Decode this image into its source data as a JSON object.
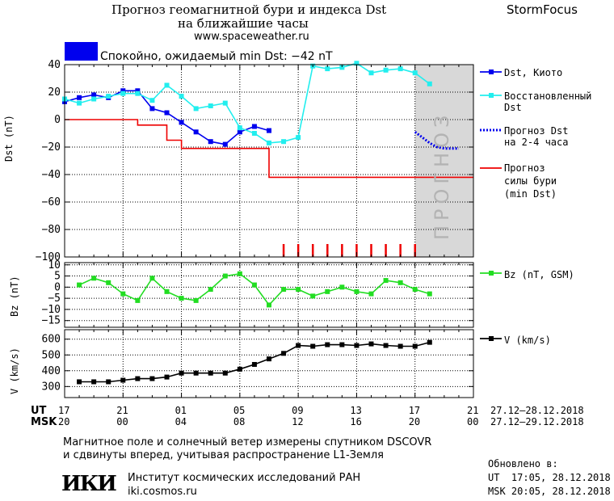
{
  "header": {
    "title_line1": "Прогноз геомагнитной бури и индекса Dst",
    "title_line2": "на ближайшие часы",
    "url": "www.spaceweather.ru",
    "brand": "StormFocus"
  },
  "status": {
    "color": "#0000ee",
    "text": "Спокойно, ожидаемый min Dst: −42 nT"
  },
  "forecast_label": "ПРОГНОЗ",
  "legend": {
    "dst_kyoto": "Dst, Киото",
    "restored_1": "Восстановленный",
    "restored_2": "Dst",
    "forecast_1": "Прогноз Dst",
    "forecast_2": "на 2-4 часа",
    "storm_1": "Прогноз",
    "storm_2": "силы бури",
    "storm_3": "(min Dst)",
    "bz": "Bz (nT, GSM)",
    "v": "V (km/s)"
  },
  "time_axis": {
    "ut_label": "UT",
    "msk_label": "MSK",
    "ut_ticks": [
      "17",
      "21",
      "01",
      "05",
      "09",
      "13",
      "17",
      "21"
    ],
    "msk_ticks": [
      "20",
      "00",
      "04",
      "08",
      "12",
      "16",
      "20",
      "00"
    ],
    "ut_range": "27.12–28.12.2018",
    "msk_range": "27.12–29.12.2018"
  },
  "footer": {
    "line1": "Магнитное поле и солнечный ветер измерены спутником DSCOVR",
    "line2": "и сдвинуты вперед, учитывая распространение L1-Земля",
    "logo": "ИКИ",
    "institute": "Институт космических исследований РАН",
    "institute_url": "iki.cosmos.ru",
    "updated_label": "Обновлено в:",
    "updated_ut": "UT  17:05, 28.12.2018",
    "updated_msk": "MSK 20:05, 28.12.2018"
  },
  "chart_data": [
    {
      "type": "line",
      "ylabel": "Dst (nT)",
      "ylim": [
        -100,
        40
      ],
      "yticks": [
        40,
        20,
        0,
        -20,
        -40,
        -60,
        -80,
        -100
      ],
      "x_unit": "hours since 17 UT 27.12.2018",
      "xlim": [
        0,
        28
      ],
      "forecast_region_start": 24,
      "series": [
        {
          "name": "Dst, Киото",
          "color": "#0000ee",
          "marker": "square",
          "x": [
            0,
            1,
            2,
            3,
            4,
            5,
            6,
            7,
            8,
            9,
            10,
            11,
            12,
            13,
            14
          ],
          "y": [
            13,
            16,
            18,
            16,
            21,
            21,
            8,
            5,
            -2,
            -9,
            -16,
            -18,
            -9,
            -5,
            -8
          ]
        },
        {
          "name": "Восстановленный Dst",
          "color": "#22eeee",
          "marker": "square",
          "x": [
            0,
            1,
            2,
            3,
            4,
            5,
            6,
            7,
            8,
            9,
            10,
            11,
            12,
            13,
            14,
            15,
            16,
            17,
            18,
            19,
            20,
            21,
            22,
            23,
            24,
            25
          ],
          "y": [
            15,
            12,
            15,
            17,
            19,
            19,
            14,
            25,
            17,
            8,
            10,
            12,
            -6,
            -10,
            -17,
            -16,
            -13,
            39,
            37,
            38,
            41,
            34,
            36,
            37,
            34,
            26
          ]
        },
        {
          "name": "Прогноз Dst на 2-4 часа",
          "color": "#0000ee",
          "style": "dotted",
          "x": [
            24,
            24.5,
            25,
            25.5,
            26,
            26.5,
            27
          ],
          "y": [
            -9,
            -13,
            -17,
            -20,
            -21,
            -21,
            -21
          ]
        },
        {
          "name": "Прогноз силы бури (min Dst)",
          "color": "#ee0000",
          "style": "step",
          "x": [
            0,
            4,
            5,
            6,
            7,
            8,
            9,
            10,
            11,
            12,
            13,
            14,
            15,
            28
          ],
          "y": [
            0,
            0,
            -4,
            -4,
            -15,
            -21,
            -21,
            -21,
            -21,
            -21,
            -21,
            -42,
            -42,
            -42
          ]
        }
      ],
      "storm_markers_x": [
        15,
        16,
        17,
        18,
        19,
        20,
        21,
        22,
        23,
        24
      ]
    },
    {
      "type": "line",
      "ylabel": "Bz (nT)",
      "ylim": [
        -18,
        11
      ],
      "yticks": [
        10,
        5,
        0,
        -5,
        -10,
        -15
      ],
      "series": [
        {
          "name": "Bz (nT, GSM)",
          "color": "#22dd22",
          "marker": "square",
          "x": [
            1,
            2,
            3,
            4,
            5,
            6,
            7,
            8,
            9,
            10,
            11,
            12,
            13,
            14,
            15,
            16,
            17,
            18,
            19,
            20,
            21,
            22,
            23,
            24,
            25
          ],
          "y": [
            1,
            4,
            2,
            -3,
            -6,
            4,
            -2,
            -5,
            -6,
            -1,
            5,
            6,
            1,
            -8,
            -1,
            -1,
            -4,
            -2,
            0,
            -2,
            -3,
            3,
            2,
            -1,
            -3
          ]
        }
      ]
    },
    {
      "type": "line",
      "ylabel": "V (km/s)",
      "ylim": [
        230,
        660
      ],
      "yticks": [
        600,
        500,
        400,
        300
      ],
      "series": [
        {
          "name": "V (km/s)",
          "color": "#000000",
          "marker": "square",
          "x": [
            1,
            2,
            3,
            4,
            5,
            6,
            7,
            8,
            9,
            10,
            11,
            12,
            13,
            14,
            15,
            16,
            17,
            18,
            19,
            20,
            21,
            22,
            23,
            24,
            25
          ],
          "y": [
            330,
            330,
            330,
            340,
            350,
            350,
            360,
            385,
            385,
            385,
            385,
            410,
            440,
            475,
            510,
            560,
            555,
            565,
            565,
            560,
            570,
            560,
            555,
            555,
            580
          ]
        }
      ]
    }
  ]
}
